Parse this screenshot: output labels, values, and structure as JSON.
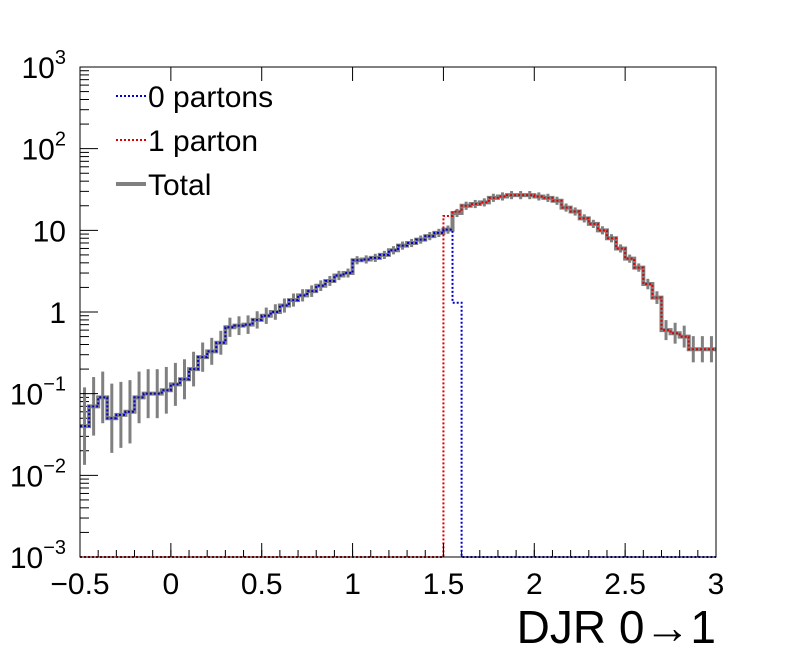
{
  "chart_data": {
    "type": "histogram",
    "xlabel": "DJR 0→1",
    "ylabel": "",
    "title": "",
    "x_range": [
      -0.5,
      3.0
    ],
    "y_range": [
      0.001,
      1000
    ],
    "y_scale": "log",
    "legend_position": "top-left",
    "x_ticks": [
      {
        "value": -0.5,
        "label": "−0.5"
      },
      {
        "value": 0,
        "label": "0"
      },
      {
        "value": 0.5,
        "label": "0.5"
      },
      {
        "value": 1,
        "label": "1"
      },
      {
        "value": 1.5,
        "label": "1.5"
      },
      {
        "value": 2,
        "label": "2"
      },
      {
        "value": 2.5,
        "label": "2.5"
      },
      {
        "value": 3,
        "label": "3"
      }
    ],
    "y_ticks": [
      {
        "value": 0.001,
        "base": "10",
        "exp": "−3"
      },
      {
        "value": 0.01,
        "base": "10",
        "exp": "−2"
      },
      {
        "value": 0.1,
        "base": "10",
        "exp": "−1"
      },
      {
        "value": 1,
        "base": "1",
        "exp": ""
      },
      {
        "value": 10,
        "base": "10",
        "exp": ""
      },
      {
        "value": 100,
        "base": "10",
        "exp": "2"
      },
      {
        "value": 1000,
        "base": "10",
        "exp": "3"
      }
    ],
    "bin_width": 0.05,
    "series": [
      {
        "name": "0 partons",
        "color": "#0000cc",
        "style": "dotted",
        "x_start": -0.5,
        "values": [
          0.04,
          0.07,
          0.09,
          0.05,
          0.055,
          0.06,
          0.09,
          0.1,
          0.1,
          0.11,
          0.13,
          0.15,
          0.2,
          0.28,
          0.33,
          0.42,
          0.65,
          0.68,
          0.7,
          0.8,
          0.9,
          1.0,
          1.2,
          1.4,
          1.6,
          1.8,
          2.1,
          2.4,
          2.8,
          3.0,
          4.3,
          4.4,
          4.6,
          5.0,
          5.7,
          6.5,
          7.0,
          7.7,
          8.5,
          9.3,
          10.2,
          1.3,
          0.001,
          0.001,
          0.001,
          0.001,
          0.001,
          0.001,
          0.001,
          0.001,
          0.001,
          0.001,
          0.001,
          0.001,
          0.001,
          0.001,
          0.001,
          0.001,
          0.001,
          0.001,
          0.001,
          0.001,
          0.001,
          0.001,
          0.001,
          0.001,
          0.001,
          0.001,
          0.001,
          0.001
        ]
      },
      {
        "name": "1 parton",
        "color": "#dd0000",
        "style": "dotted",
        "x_start": -0.5,
        "values": [
          0.001,
          0.001,
          0.001,
          0.001,
          0.001,
          0.001,
          0.001,
          0.001,
          0.001,
          0.001,
          0.001,
          0.001,
          0.001,
          0.001,
          0.001,
          0.001,
          0.001,
          0.001,
          0.001,
          0.001,
          0.001,
          0.001,
          0.001,
          0.001,
          0.001,
          0.001,
          0.001,
          0.001,
          0.001,
          0.001,
          0.001,
          0.001,
          0.001,
          0.001,
          0.001,
          0.001,
          0.001,
          0.001,
          0.001,
          0.001,
          15,
          17,
          20,
          21,
          22,
          25,
          26,
          27,
          27,
          27,
          26,
          25,
          23,
          19,
          17,
          14,
          12,
          10,
          8,
          6,
          4.5,
          3.5,
          2.2,
          1.5,
          0.6,
          0.55,
          0.5,
          0.35,
          0.35,
          0.35
        ]
      },
      {
        "name": "Total",
        "color": "#808080",
        "style": "solid",
        "x_start": -0.5,
        "values": [
          0.04,
          0.07,
          0.09,
          0.05,
          0.055,
          0.06,
          0.09,
          0.1,
          0.1,
          0.11,
          0.13,
          0.15,
          0.2,
          0.28,
          0.33,
          0.42,
          0.65,
          0.68,
          0.7,
          0.8,
          0.9,
          1.0,
          1.2,
          1.4,
          1.6,
          1.8,
          2.1,
          2.4,
          2.8,
          3.0,
          4.3,
          4.4,
          4.6,
          5.0,
          5.7,
          6.5,
          7.0,
          7.7,
          8.5,
          9.3,
          10.2,
          16.3,
          20,
          21,
          22,
          25,
          26,
          27,
          27,
          27,
          26,
          25,
          23,
          19,
          17,
          14,
          12,
          10,
          8,
          6,
          4.5,
          3.5,
          2.2,
          1.5,
          0.6,
          0.55,
          0.5,
          0.35,
          0.35,
          0.35
        ]
      }
    ]
  }
}
